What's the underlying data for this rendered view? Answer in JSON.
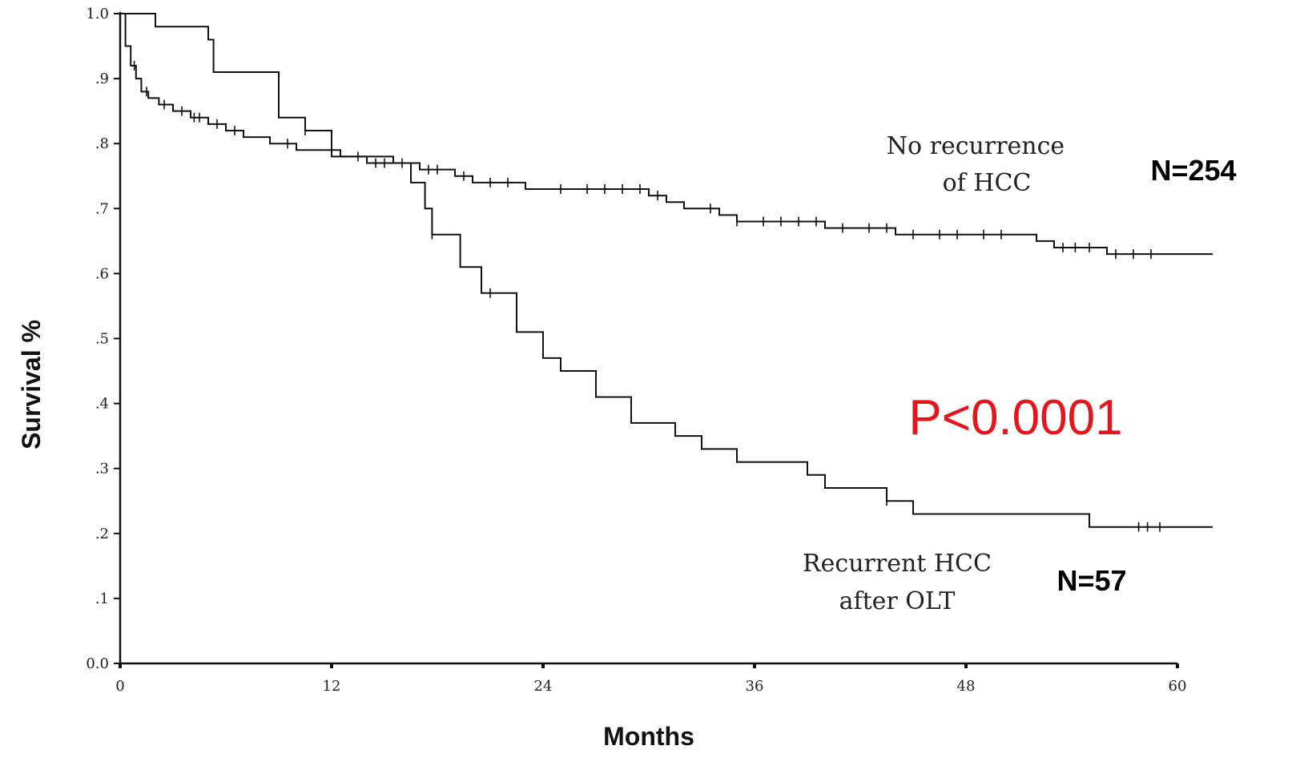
{
  "chart_data": {
    "type": "line",
    "subtype": "kaplan-meier step",
    "xlabel": "Months",
    "ylabel": "Survival %",
    "xlim": [
      0,
      60
    ],
    "ylim": [
      0,
      1.0
    ],
    "x_ticks": [
      0,
      12,
      24,
      36,
      48,
      60
    ],
    "x_tick_labels": [
      "0",
      "12",
      "24",
      "36",
      "48",
      "60"
    ],
    "y_ticks": [
      0,
      0.1,
      0.2,
      0.3,
      0.4,
      0.5,
      0.6,
      0.7,
      0.8,
      0.9,
      1.0
    ],
    "y_tick_labels": [
      "0.0",
      ".1",
      ".2",
      ".3",
      ".4",
      ".5",
      ".6",
      ".7",
      ".8",
      ".9",
      "1.0"
    ],
    "grid": false,
    "legend": "none",
    "series": [
      {
        "name": "No recurrence of HCC",
        "count_label": "N=254",
        "steps": [
          [
            0,
            1.0
          ],
          [
            0.3,
            0.95
          ],
          [
            0.6,
            0.92
          ],
          [
            0.9,
            0.9
          ],
          [
            1.2,
            0.88
          ],
          [
            1.6,
            0.87
          ],
          [
            2.2,
            0.86
          ],
          [
            3,
            0.85
          ],
          [
            4,
            0.84
          ],
          [
            5,
            0.83
          ],
          [
            6,
            0.82
          ],
          [
            7,
            0.81
          ],
          [
            8.5,
            0.8
          ],
          [
            10,
            0.79
          ],
          [
            12.5,
            0.78
          ],
          [
            14,
            0.77
          ],
          [
            17,
            0.76
          ],
          [
            19,
            0.75
          ],
          [
            20,
            0.74
          ],
          [
            23,
            0.73
          ],
          [
            30,
            0.72
          ],
          [
            31,
            0.71
          ],
          [
            32,
            0.7
          ],
          [
            34,
            0.69
          ],
          [
            35,
            0.68
          ],
          [
            40,
            0.67
          ],
          [
            44,
            0.66
          ],
          [
            48,
            0.66
          ],
          [
            52,
            0.65
          ],
          [
            53,
            0.64
          ],
          [
            56,
            0.63
          ],
          [
            62,
            0.63
          ]
        ],
        "censor_x": [
          0.8,
          1.5,
          2.5,
          3.5,
          4.2,
          4.5,
          5.5,
          6.5,
          9.5,
          13.5,
          14.5,
          15,
          16,
          17.5,
          18,
          19.5,
          21,
          22,
          25,
          26.5,
          27.5,
          28.5,
          29.5,
          30.5,
          33.5,
          35,
          36.5,
          37.5,
          38.5,
          39.5,
          41,
          42.5,
          43.5,
          45,
          46.5,
          47.5,
          49,
          50,
          53.5,
          54.2,
          55,
          56.5,
          57.5,
          58.5
        ]
      },
      {
        "name": "Recurrent HCC after OLT",
        "count_label": "N=57",
        "steps": [
          [
            0,
            1.0
          ],
          [
            2,
            0.98
          ],
          [
            3.5,
            0.98
          ],
          [
            5,
            0.96
          ],
          [
            5.3,
            0.91
          ],
          [
            8,
            0.91
          ],
          [
            9,
            0.84
          ],
          [
            10.5,
            0.82
          ],
          [
            12,
            0.78
          ],
          [
            15.5,
            0.77
          ],
          [
            16.5,
            0.74
          ],
          [
            17.3,
            0.7
          ],
          [
            17.7,
            0.66
          ],
          [
            19.3,
            0.61
          ],
          [
            20.5,
            0.57
          ],
          [
            22.5,
            0.51
          ],
          [
            24,
            0.47
          ],
          [
            25,
            0.45
          ],
          [
            27,
            0.41
          ],
          [
            29,
            0.37
          ],
          [
            31.5,
            0.35
          ],
          [
            33,
            0.33
          ],
          [
            35,
            0.31
          ],
          [
            39,
            0.29
          ],
          [
            40,
            0.27
          ],
          [
            43.5,
            0.25
          ],
          [
            45,
            0.23
          ],
          [
            55,
            0.21
          ],
          [
            62,
            0.21
          ]
        ],
        "censor_x": [
          10.5,
          17.7,
          21,
          43.5,
          57.8,
          58.3,
          59
        ]
      }
    ],
    "annotations": [
      {
        "text": "P<0.0001",
        "color": "#e8141b"
      }
    ]
  },
  "labels": {
    "no_recurrence_line1": "No recurrence",
    "no_recurrence_line2": "of HCC",
    "recurrent_line1": "Recurrent HCC",
    "recurrent_line2": "after OLT",
    "n_no_recurrence": "N=254",
    "n_recurrent": "N=57",
    "p_value": "P<0.0001"
  },
  "colors": {
    "curve": "#111111",
    "p_value": "#e8141b"
  }
}
